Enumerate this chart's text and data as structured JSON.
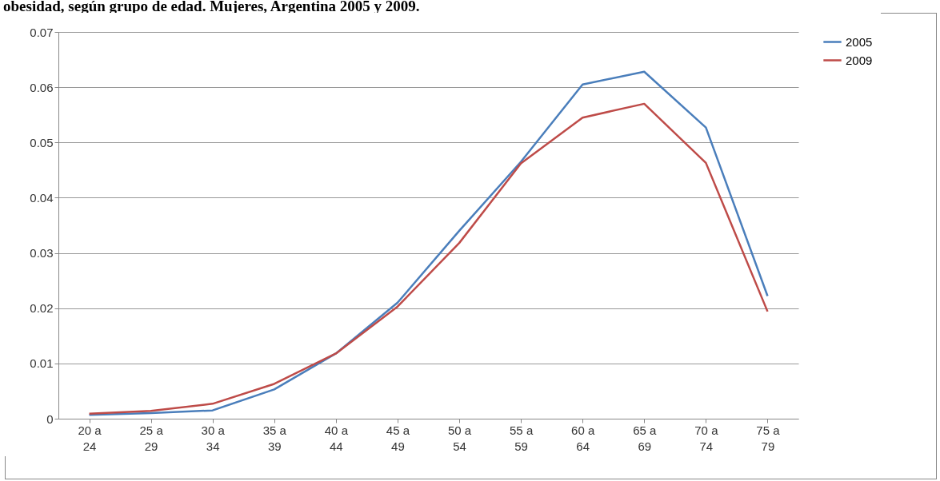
{
  "chart_data": {
    "type": "line",
    "title": "obesidad, según grupo de edad. Mujeres, Argentina 2005 y 2009.",
    "categories": [
      "20 a 24",
      "25 a 29",
      "30 a 34",
      "35 a 39",
      "40 a 44",
      "45 a 49",
      "50 a 54",
      "55 a 59",
      "60 a 64",
      "65 a 69",
      "70 a 74",
      "75 a 79"
    ],
    "series": [
      {
        "name": "2005",
        "color": "#4a7ebb",
        "values": [
          0.0007,
          0.001,
          0.0015,
          0.0053,
          0.0118,
          0.021,
          0.034,
          0.0465,
          0.0605,
          0.0628,
          0.0527,
          0.0222
        ]
      },
      {
        "name": "2009",
        "color": "#be4b48",
        "values": [
          0.0009,
          0.0014,
          0.0027,
          0.0063,
          0.0118,
          0.0203,
          0.0318,
          0.0462,
          0.0545,
          0.057,
          0.0463,
          0.0194
        ]
      }
    ],
    "ylim": [
      0,
      0.07
    ],
    "yticks": [
      0,
      0.01,
      0.02,
      0.03,
      0.04,
      0.05,
      0.06,
      0.07
    ],
    "grid": "y",
    "legend": "right",
    "marker": "none",
    "line_style": "solid"
  }
}
